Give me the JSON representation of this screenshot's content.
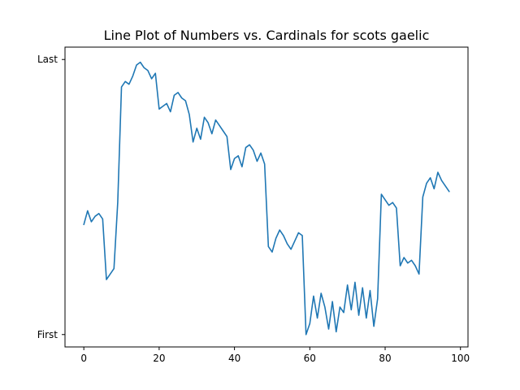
{
  "chart_data": {
    "type": "line",
    "title": "Line Plot of Numbers vs. Cardinals for scots gaelic",
    "xlabel": "",
    "ylabel": "",
    "xlim": [
      -5,
      102
    ],
    "ylim": [
      -0.045,
      1.045
    ],
    "x_ticks": [
      {
        "value": 0,
        "label": "0"
      },
      {
        "value": 20,
        "label": "20"
      },
      {
        "value": 40,
        "label": "40"
      },
      {
        "value": 60,
        "label": "60"
      },
      {
        "value": 80,
        "label": "80"
      },
      {
        "value": 100,
        "label": "100"
      }
    ],
    "y_ticks": [
      {
        "value": 0,
        "label": "First"
      },
      {
        "value": 1,
        "label": "Last"
      }
    ],
    "grid": false,
    "series": [
      {
        "color": "#1f77b4",
        "x": [
          0,
          1,
          2,
          3,
          4,
          5,
          6,
          7,
          8,
          9,
          10,
          11,
          12,
          13,
          14,
          15,
          16,
          17,
          18,
          19,
          20,
          21,
          22,
          23,
          24,
          25,
          26,
          27,
          28,
          29,
          30,
          31,
          32,
          33,
          34,
          35,
          36,
          37,
          38,
          39,
          40,
          41,
          42,
          43,
          44,
          45,
          46,
          47,
          48,
          49,
          50,
          51,
          52,
          53,
          54,
          55,
          56,
          57,
          58,
          59,
          60,
          61,
          62,
          63,
          64,
          65,
          66,
          67,
          68,
          69,
          70,
          71,
          72,
          73,
          74,
          75,
          76,
          77,
          78,
          79,
          80,
          81,
          82,
          83,
          84,
          85,
          86,
          87,
          88,
          89,
          90,
          91,
          92,
          93,
          94,
          95,
          96,
          97
        ],
        "values": [
          0.4,
          0.45,
          0.41,
          0.43,
          0.44,
          0.42,
          0.2,
          0.22,
          0.24,
          0.48,
          0.9,
          0.92,
          0.91,
          0.94,
          0.98,
          0.99,
          0.97,
          0.96,
          0.93,
          0.95,
          0.82,
          0.83,
          0.84,
          0.81,
          0.87,
          0.88,
          0.86,
          0.85,
          0.8,
          0.7,
          0.75,
          0.71,
          0.79,
          0.77,
          0.73,
          0.78,
          0.76,
          0.74,
          0.72,
          0.6,
          0.64,
          0.65,
          0.61,
          0.68,
          0.69,
          0.67,
          0.63,
          0.66,
          0.62,
          0.32,
          0.3,
          0.35,
          0.38,
          0.36,
          0.33,
          0.31,
          0.34,
          0.37,
          0.36,
          0.0,
          0.04,
          0.14,
          0.06,
          0.15,
          0.1,
          0.02,
          0.12,
          0.01,
          0.1,
          0.08,
          0.18,
          0.09,
          0.19,
          0.07,
          0.17,
          0.06,
          0.16,
          0.03,
          0.13,
          0.51,
          0.49,
          0.47,
          0.48,
          0.46,
          0.25,
          0.28,
          0.26,
          0.27,
          0.25,
          0.22,
          0.5,
          0.55,
          0.57,
          0.53,
          0.59,
          0.56,
          0.54,
          0.52
        ]
      }
    ]
  }
}
